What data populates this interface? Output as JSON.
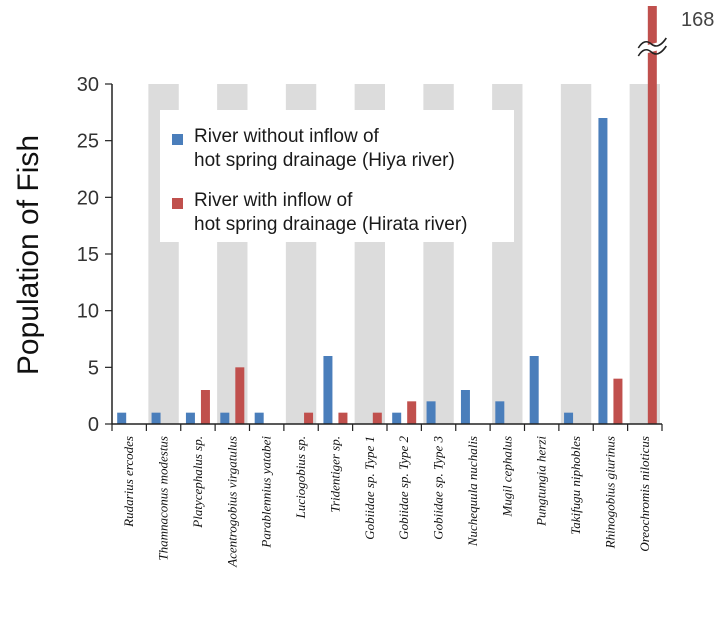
{
  "chart_data": {
    "type": "bar",
    "title": "",
    "xlabel": "",
    "ylabel": "Population of Fish",
    "ylim": [
      0,
      30
    ],
    "yticks": [
      0,
      5,
      10,
      15,
      20,
      25,
      30
    ],
    "categories": [
      "Rudarius ercodes",
      "Thamnaconus modestus",
      "Platycephalus sp.",
      "Acentrogobius virgatulus",
      "Parablennius yatabei",
      "Luciogobius sp.",
      "Tridentiger sp.",
      "Gobiidae sp. Type 1",
      "Gobiidae sp. Type 2",
      "Gobiidae sp. Type 3",
      "Nuchequula nuchalis",
      "Mugil cephalus",
      "Pungtungia herzi",
      "Takifugu niphobles",
      "Rhinogobius giurinus",
      "Oreochromis niloticus"
    ],
    "series": [
      {
        "name": "River without inflow of hot spring drainage (Hiya river)",
        "legend_lines": [
          "River without inflow of",
          "hot spring drainage (Hiya river)"
        ],
        "color": "#4a7ebb",
        "values": [
          1,
          1,
          1,
          1,
          1,
          0,
          6,
          0,
          1,
          2,
          3,
          2,
          6,
          1,
          27,
          0
        ]
      },
      {
        "name": "River with inflow of hot spring drainage (Hirata river)",
        "legend_lines": [
          "River with inflow of",
          "hot spring drainage (Hirata river)"
        ],
        "color": "#c0504d",
        "values": [
          0,
          0,
          3,
          5,
          0,
          1,
          1,
          1,
          2,
          0,
          0,
          0,
          0,
          0,
          4,
          168
        ]
      }
    ],
    "axis_break": {
      "label": "168"
    },
    "band_color": "#dcdcdc",
    "grid": false,
    "legend_position": "upper-left inside plot"
  }
}
